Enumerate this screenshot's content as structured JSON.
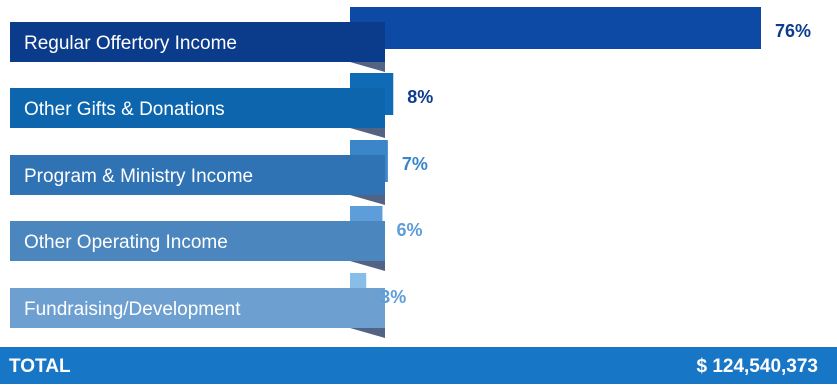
{
  "chart_data": {
    "type": "bar",
    "orientation": "horizontal",
    "categories": [
      "Regular Offertory Income",
      "Other Gifts & Donations",
      "Program & Ministry Income",
      "Other Operating Income",
      "Fundraising/Development"
    ],
    "values": [
      76,
      8,
      7,
      6,
      3
    ],
    "value_labels": [
      "76%",
      "8%",
      "7%",
      "6%",
      "3%"
    ],
    "xlim": [
      0,
      76
    ],
    "colors": {
      "bars": [
        "#0d4aa6",
        "#106bb6",
        "#3b85c9",
        "#5d9dd9",
        "#88bde8"
      ],
      "labels": [
        "#0b3c8c",
        "#0d66ad",
        "#3073b4",
        "#4b86bf",
        "#6d9fd1"
      ],
      "percent_text": [
        "#0d3c8c",
        "#0d3c8c",
        "#3b85c9",
        "#5d9dd9",
        "#5d9dd9"
      ],
      "total_bar": "#1876c6"
    },
    "total": {
      "label": "TOTAL",
      "value": "$  124,540,373"
    }
  }
}
